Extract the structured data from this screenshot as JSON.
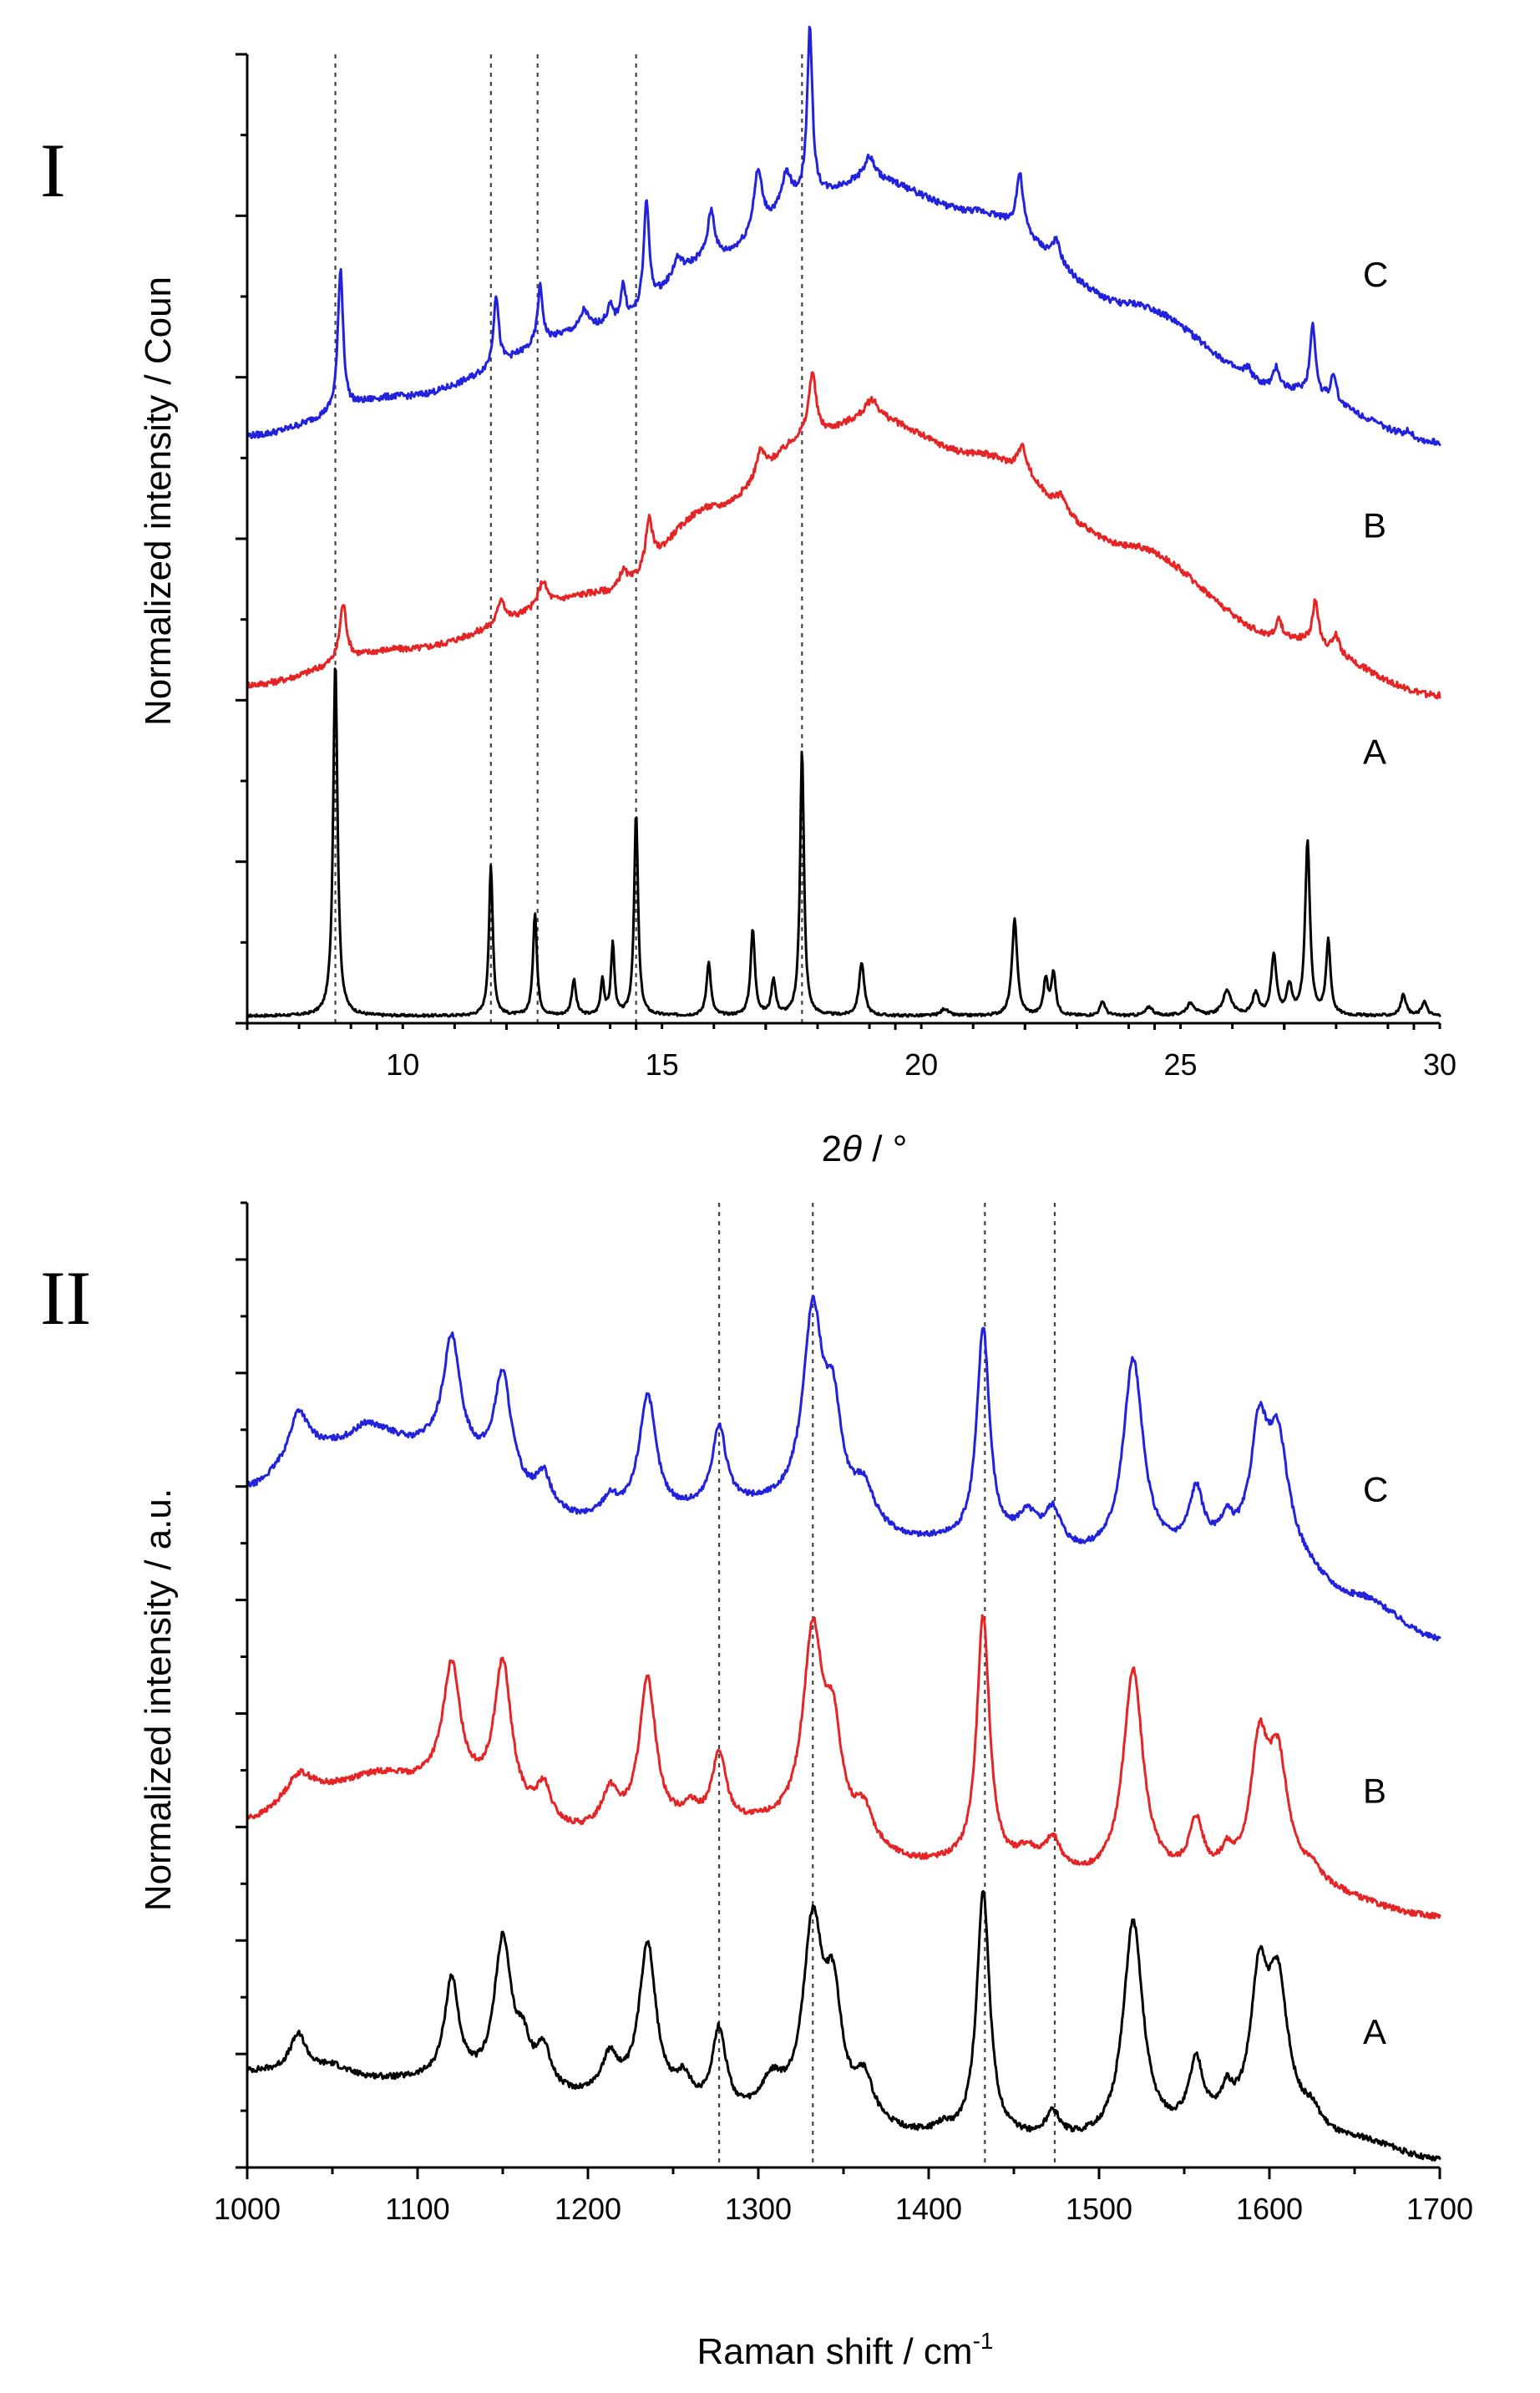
{
  "chart_data": [
    {
      "panel_label": "I",
      "type": "line",
      "xlabel_prefix": "2",
      "xlabel_symbol": "θ",
      "xlabel_suffix": " / °",
      "ylabel": "Normalized intensity / Coun",
      "xlim": [
        7,
        30
      ],
      "x_ticks": [
        10,
        15,
        20,
        25,
        30
      ],
      "dashed_guides_x": [
        8.7,
        11.7,
        12.6,
        14.5,
        17.7
      ],
      "series": [
        {
          "name": "A",
          "color": "#000000",
          "baseline": [
            [
              7,
              0.02
            ],
            [
              12,
              0.02
            ],
            [
              20,
              0.02
            ],
            [
              30,
              0.02
            ]
          ],
          "peaks": [
            [
              8.7,
              1.0,
              0.05
            ],
            [
              11.7,
              0.42,
              0.045
            ],
            [
              12.55,
              0.29,
              0.045
            ],
            [
              13.3,
              0.1,
              0.05
            ],
            [
              13.85,
              0.1,
              0.04
            ],
            [
              14.05,
              0.2,
              0.04
            ],
            [
              14.5,
              0.57,
              0.045
            ],
            [
              15.9,
              0.15,
              0.05
            ],
            [
              16.75,
              0.24,
              0.05
            ],
            [
              17.15,
              0.1,
              0.05
            ],
            [
              17.7,
              0.75,
              0.045
            ],
            [
              18.85,
              0.15,
              0.06
            ],
            [
              20.45,
              0.02,
              0.08
            ],
            [
              21.8,
              0.27,
              0.06
            ],
            [
              22.4,
              0.1,
              0.05
            ],
            [
              22.55,
              0.12,
              0.05
            ],
            [
              23.5,
              0.04,
              0.06
            ],
            [
              24.4,
              0.025,
              0.08
            ],
            [
              25.2,
              0.035,
              0.1
            ],
            [
              25.9,
              0.07,
              0.1
            ],
            [
              26.45,
              0.06,
              0.07
            ],
            [
              26.8,
              0.17,
              0.06
            ],
            [
              27.1,
              0.08,
              0.06
            ],
            [
              27.45,
              0.49,
              0.055
            ],
            [
              27.85,
              0.21,
              0.05
            ],
            [
              29.3,
              0.06,
              0.06
            ],
            [
              29.7,
              0.04,
              0.06
            ]
          ]
        },
        {
          "name": "B",
          "color": "#e52525",
          "baseline": [
            [
              7,
              0.95
            ],
            [
              10,
              1.05
            ],
            [
              14,
              1.21
            ],
            [
              16,
              1.45
            ],
            [
              18,
              1.66
            ],
            [
              19,
              1.7
            ],
            [
              21,
              1.6
            ],
            [
              24,
              1.34
            ],
            [
              27,
              1.08
            ],
            [
              30,
              0.92
            ]
          ],
          "peaks": [
            [
              8.85,
              0.16,
              0.08
            ],
            [
              11.9,
              0.07,
              0.08
            ],
            [
              12.7,
              0.07,
              0.1
            ],
            [
              14.25,
              0.05,
              0.1
            ],
            [
              14.75,
              0.13,
              0.08
            ],
            [
              16.9,
              0.07,
              0.1
            ],
            [
              17.9,
              0.17,
              0.08
            ],
            [
              19.05,
              0.05,
              0.15
            ],
            [
              21.95,
              0.08,
              0.12
            ],
            [
              22.7,
              0.04,
              0.1
            ],
            [
              26.9,
              0.05,
              0.08
            ],
            [
              27.6,
              0.12,
              0.07
            ],
            [
              28.0,
              0.05,
              0.07
            ]
          ]
        },
        {
          "name": "C",
          "color": "#2222dd",
          "baseline": [
            [
              7,
              1.65
            ],
            [
              10,
              1.76
            ],
            [
              14,
              1.96
            ],
            [
              16,
              2.15
            ],
            [
              18,
              2.33
            ],
            [
              19,
              2.37
            ],
            [
              21,
              2.28
            ],
            [
              24,
              2.02
            ],
            [
              27,
              1.78
            ],
            [
              30,
              1.63
            ]
          ],
          "peaks": [
            [
              8.8,
              0.4,
              0.06
            ],
            [
              11.8,
              0.2,
              0.06
            ],
            [
              12.65,
              0.16,
              0.06
            ],
            [
              13.5,
              0.05,
              0.08
            ],
            [
              14.0,
              0.05,
              0.07
            ],
            [
              14.25,
              0.1,
              0.06
            ],
            [
              14.7,
              0.3,
              0.06
            ],
            [
              15.3,
              0.05,
              0.1
            ],
            [
              15.95,
              0.13,
              0.08
            ],
            [
              16.85,
              0.17,
              0.1
            ],
            [
              17.4,
              0.09,
              0.1
            ],
            [
              17.85,
              0.46,
              0.06
            ],
            [
              19.0,
              0.06,
              0.12
            ],
            [
              21.9,
              0.16,
              0.08
            ],
            [
              22.6,
              0.06,
              0.1
            ],
            [
              26.3,
              0.03,
              0.08
            ],
            [
              26.85,
              0.06,
              0.07
            ],
            [
              27.55,
              0.2,
              0.06
            ],
            [
              27.95,
              0.08,
              0.06
            ],
            [
              29.4,
              0.02,
              0.08
            ]
          ]
        }
      ]
    },
    {
      "panel_label": "II",
      "type": "line",
      "xlabel": "Raman shift / cm",
      "xlabel_sup": "-1",
      "ylabel": "Normalized intensity / a.u.",
      "xlim": [
        1000,
        1700
      ],
      "x_ticks": [
        1000,
        1100,
        1200,
        1300,
        1400,
        1500,
        1600,
        1700
      ],
      "dashed_guides_x": [
        1277,
        1332,
        1433,
        1474
      ],
      "series": [
        {
          "name": "A",
          "color": "#000000",
          "baseline": [
            [
              1000,
              0.3
            ],
            [
              1100,
              0.27
            ],
            [
              1200,
              0.21
            ],
            [
              1300,
              0.14
            ],
            [
              1400,
              0.09
            ],
            [
              1500,
              0.07
            ],
            [
              1600,
              0.13
            ],
            [
              1650,
              0.08
            ],
            [
              1700,
              0.02
            ]
          ],
          "peaks": [
            [
              1030,
              0.12,
              6
            ],
            [
              1050,
              0.03,
              10
            ],
            [
              1120,
              0.32,
              5
            ],
            [
              1150,
              0.46,
              6
            ],
            [
              1162,
              0.12,
              5
            ],
            [
              1174,
              0.13,
              5
            ],
            [
              1213,
              0.12,
              6
            ],
            [
              1235,
              0.5,
              6
            ],
            [
              1256,
              0.08,
              6
            ],
            [
              1277,
              0.26,
              5
            ],
            [
              1308,
              0.1,
              8
            ],
            [
              1332,
              0.6,
              7
            ],
            [
              1344,
              0.35,
              6
            ],
            [
              1362,
              0.14,
              7
            ],
            [
              1408,
              0.02,
              4
            ],
            [
              1432,
              0.78,
              4.5
            ],
            [
              1473,
              0.08,
              5
            ],
            [
              1520,
              0.69,
              7
            ],
            [
              1557,
              0.2,
              5
            ],
            [
              1575,
              0.08,
              4
            ],
            [
              1594,
              0.42,
              6
            ],
            [
              1605,
              0.42,
              7
            ],
            [
              1625,
              0.05,
              6
            ]
          ]
        },
        {
          "name": "B",
          "color": "#e52525",
          "baseline": [
            [
              1000,
              1.1
            ],
            [
              1040,
              1.2
            ],
            [
              1080,
              1.24
            ],
            [
              1100,
              1.22
            ],
            [
              1200,
              1.05
            ],
            [
              1300,
              1.07
            ],
            [
              1400,
              0.95
            ],
            [
              1500,
              0.9
            ],
            [
              1600,
              0.9
            ],
            [
              1700,
              0.79
            ]
          ],
          "peaks": [
            [
              1030,
              0.06,
              8
            ],
            [
              1120,
              0.38,
              6
            ],
            [
              1150,
              0.45,
              6
            ],
            [
              1174,
              0.11,
              5
            ],
            [
              1213,
              0.12,
              6
            ],
            [
              1235,
              0.47,
              6
            ],
            [
              1260,
              0.05,
              6
            ],
            [
              1277,
              0.22,
              5
            ],
            [
              1332,
              0.62,
              7
            ],
            [
              1344,
              0.3,
              6
            ],
            [
              1362,
              0.11,
              7
            ],
            [
              1432,
              0.79,
              4.5
            ],
            [
              1458,
              0.06,
              8
            ],
            [
              1473,
              0.1,
              6
            ],
            [
              1520,
              0.66,
              7
            ],
            [
              1557,
              0.17,
              5
            ],
            [
              1575,
              0.06,
              4
            ],
            [
              1594,
              0.39,
              6
            ],
            [
              1605,
              0.36,
              7
            ],
            [
              1625,
              0.04,
              6
            ]
          ]
        },
        {
          "name": "C",
          "color": "#2222dd",
          "baseline": [
            [
              1000,
              2.15
            ],
            [
              1040,
              2.28
            ],
            [
              1080,
              2.31
            ],
            [
              1100,
              2.28
            ],
            [
              1200,
              2.04
            ],
            [
              1300,
              2.08
            ],
            [
              1400,
              1.97
            ],
            [
              1500,
              1.92
            ],
            [
              1600,
              1.95
            ],
            [
              1650,
              1.8
            ],
            [
              1700,
              1.67
            ]
          ],
          "peaks": [
            [
              1030,
              0.13,
              6
            ],
            [
              1070,
              0.04,
              8
            ],
            [
              1120,
              0.36,
              6
            ],
            [
              1150,
              0.34,
              6
            ],
            [
              1174,
              0.1,
              5
            ],
            [
              1213,
              0.06,
              6
            ],
            [
              1235,
              0.38,
              6
            ],
            [
              1277,
              0.25,
              5
            ],
            [
              1332,
              0.62,
              7
            ],
            [
              1344,
              0.3,
              6
            ],
            [
              1362,
              0.12,
              7
            ],
            [
              1432,
              0.68,
              4.5
            ],
            [
              1458,
              0.1,
              8
            ],
            [
              1473,
              0.12,
              6
            ],
            [
              1520,
              0.62,
              7
            ],
            [
              1557,
              0.18,
              5
            ],
            [
              1575,
              0.07,
              4
            ],
            [
              1594,
              0.35,
              6
            ],
            [
              1605,
              0.33,
              7
            ]
          ]
        }
      ]
    }
  ]
}
